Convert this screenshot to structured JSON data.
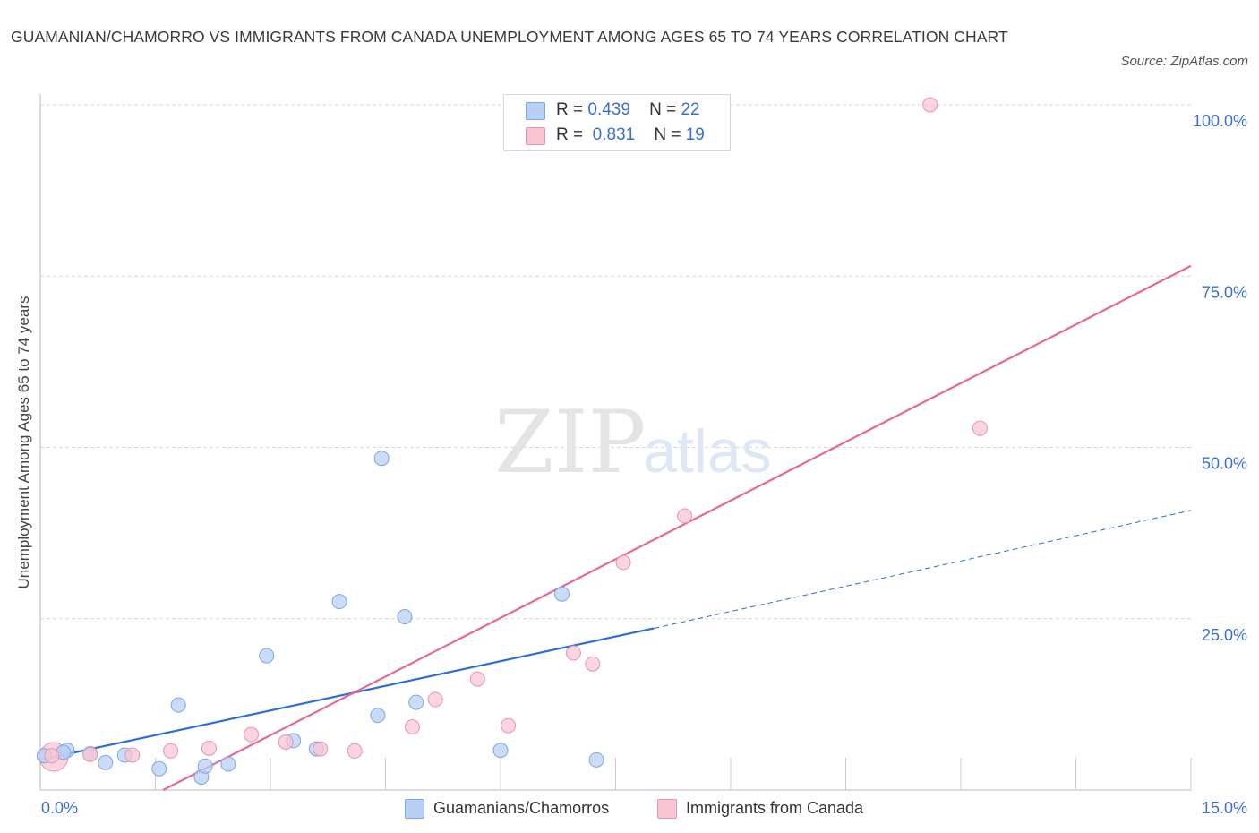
{
  "chart_data": {
    "type": "scatter",
    "title": "GUAMANIAN/CHAMORRO VS IMMIGRANTS FROM CANADA UNEMPLOYMENT AMONG AGES 65 TO 74 YEARS CORRELATION CHART",
    "source": "Source: ZipAtlas.com",
    "xlabel": "",
    "ylabel": "Unemployment Among Ages 65 to 74 years",
    "xlim": [
      0,
      15
    ],
    "ylim": [
      0,
      100
    ],
    "x_tick_labels": {
      "min": "0.0%",
      "max": "15.0%"
    },
    "y_ticks": [
      {
        "value": 100,
        "label": "100.0%"
      },
      {
        "value": 75,
        "label": "75.0%"
      },
      {
        "value": 50,
        "label": "50.0%"
      },
      {
        "value": 25,
        "label": "25.0%"
      }
    ],
    "x_minor_ticks": [
      1.5,
      3.0,
      4.5,
      6.0,
      7.5,
      9.0,
      10.5,
      12.0,
      13.5,
      15.0
    ],
    "grid": true,
    "watermark": {
      "zip": "ZIP",
      "atlas": "atlas"
    },
    "legend_stats": [
      {
        "r_label": "R =",
        "r": "0.439",
        "n_label": "N =",
        "n": "22",
        "color": "#b8d0f5",
        "border": "#7ea6e0"
      },
      {
        "r_label": "R =",
        "r": "0.831",
        "n_label": "N =",
        "n": "19",
        "color": "#f8c5d5",
        "border": "#e894b0"
      }
    ],
    "series": [
      {
        "name": "Guamanians/Chamorros",
        "color": "#b8d0f5",
        "stroke": "#7ea6e0",
        "points": [
          [
            0.05,
            5.0
          ],
          [
            0.35,
            5.8
          ],
          [
            0.65,
            5.3
          ],
          [
            0.85,
            4.0
          ],
          [
            1.1,
            5.1
          ],
          [
            1.55,
            3.1
          ],
          [
            1.8,
            12.4
          ],
          [
            2.1,
            1.9
          ],
          [
            2.15,
            3.5
          ],
          [
            2.45,
            3.8
          ],
          [
            2.95,
            19.6
          ],
          [
            3.3,
            7.2
          ],
          [
            3.6,
            6.0
          ],
          [
            3.9,
            27.5
          ],
          [
            4.4,
            10.9
          ],
          [
            4.45,
            48.4
          ],
          [
            4.75,
            25.3
          ],
          [
            4.9,
            12.8
          ],
          [
            6.0,
            5.8
          ],
          [
            6.8,
            28.6
          ],
          [
            7.25,
            4.4
          ],
          [
            0.3,
            5.5
          ]
        ],
        "trend": {
          "x0": 0.0,
          "y0": 4.4,
          "x1": 8.0,
          "y1": 23.6,
          "style": "solid"
        },
        "trend_ext": {
          "x0": 8.0,
          "y0": 23.6,
          "x1": 15.0,
          "y1": 40.8,
          "style": "dashed"
        }
      },
      {
        "name": "Immigrants from Canada",
        "color": "#f8c5d5",
        "stroke": "#e894b0",
        "points": [
          [
            0.15,
            5.0
          ],
          [
            0.65,
            5.2
          ],
          [
            1.2,
            5.1
          ],
          [
            1.7,
            5.7
          ],
          [
            2.2,
            6.1
          ],
          [
            2.75,
            8.1
          ],
          [
            3.2,
            7.0
          ],
          [
            3.65,
            6.0
          ],
          [
            4.1,
            5.7
          ],
          [
            4.85,
            9.2
          ],
          [
            5.15,
            13.2
          ],
          [
            5.7,
            16.2
          ],
          [
            6.1,
            9.4
          ],
          [
            6.95,
            20.0
          ],
          [
            7.2,
            18.4
          ],
          [
            7.6,
            33.2
          ],
          [
            8.4,
            40.0
          ],
          [
            11.6,
            100.0
          ],
          [
            12.25,
            52.8
          ]
        ],
        "trend": {
          "x0": 1.6,
          "y0": 0.0,
          "x1": 15.0,
          "y1": 76.5,
          "style": "solid"
        }
      }
    ]
  }
}
